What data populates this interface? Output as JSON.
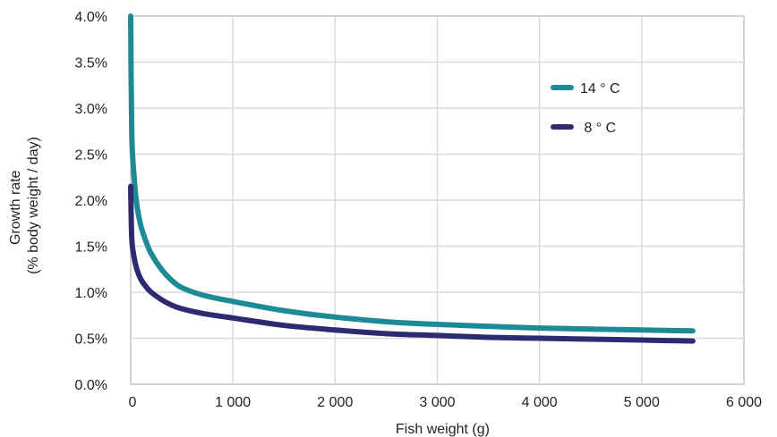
{
  "chart_data": {
    "type": "line",
    "xlabel": "Fish weight (g)",
    "ylabel_lines": [
      "Growth rate",
      "(% body weight / day)"
    ],
    "xlim": [
      0,
      6000
    ],
    "ylim": [
      0,
      4.0
    ],
    "x_ticks": [
      0,
      1000,
      2000,
      3000,
      4000,
      5000,
      6000
    ],
    "x_tick_labels": [
      "0",
      "1 000",
      "2 000",
      "3 000",
      "4 000",
      "5 000",
      "6 000"
    ],
    "y_ticks": [
      0,
      0.5,
      1.0,
      1.5,
      2.0,
      2.5,
      3.0,
      3.5,
      4.0
    ],
    "y_tick_labels": [
      "0.0%",
      "0.5%",
      "1.0%",
      "1.5%",
      "2.0%",
      "2.5%",
      "3.0%",
      "3.5%",
      "4.0%"
    ],
    "grid": true,
    "legend_position": "top-right",
    "series": [
      {
        "name": "14 ° C",
        "color": "#1c8b96",
        "x": [
          0,
          10,
          30,
          60,
          100,
          150,
          200,
          300,
          400,
          500,
          700,
          1000,
          1500,
          2000,
          2500,
          3000,
          3500,
          4000,
          4500,
          5000,
          5500
        ],
        "y": [
          4.0,
          2.75,
          2.3,
          1.95,
          1.72,
          1.55,
          1.42,
          1.25,
          1.13,
          1.05,
          0.97,
          0.9,
          0.8,
          0.73,
          0.68,
          0.65,
          0.63,
          0.61,
          0.6,
          0.59,
          0.58
        ]
      },
      {
        "name": " 8 ° C",
        "color": "#2e2a72",
        "x": [
          0,
          10,
          30,
          60,
          100,
          150,
          200,
          300,
          400,
          500,
          700,
          1000,
          1500,
          2000,
          2500,
          3000,
          3500,
          4000,
          4500,
          5000,
          5500
        ],
        "y": [
          2.15,
          1.6,
          1.4,
          1.25,
          1.14,
          1.06,
          1.0,
          0.92,
          0.86,
          0.82,
          0.77,
          0.72,
          0.64,
          0.59,
          0.55,
          0.53,
          0.51,
          0.5,
          0.49,
          0.48,
          0.47
        ]
      }
    ]
  }
}
